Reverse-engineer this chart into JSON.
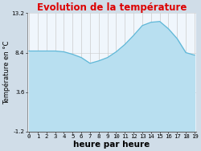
{
  "title": "Evolution de la température",
  "xlabel": "heure par heure",
  "ylabel": "Température en °C",
  "hours": [
    0,
    1,
    2,
    3,
    4,
    5,
    6,
    7,
    8,
    9,
    10,
    11,
    12,
    13,
    14,
    15,
    16,
    17,
    18,
    19
  ],
  "temps": [
    8.6,
    8.6,
    8.6,
    8.6,
    8.5,
    8.2,
    7.8,
    7.1,
    7.4,
    7.8,
    8.5,
    9.4,
    10.5,
    11.7,
    12.1,
    12.2,
    11.3,
    10.1,
    8.4,
    8.1
  ],
  "ylim": [
    -1.2,
    13.2
  ],
  "yticks": [
    -1.2,
    3.6,
    8.4,
    13.2
  ],
  "ytick_labels": [
    "-1.2",
    "3.6",
    "8.4",
    "13.2"
  ],
  "xticks": [
    0,
    1,
    2,
    3,
    4,
    5,
    6,
    7,
    8,
    9,
    10,
    11,
    12,
    13,
    14,
    15,
    16,
    17,
    18,
    19
  ],
  "fill_color": "#b8dff0",
  "fill_alpha": 1.0,
  "line_color": "#60b8d8",
  "line_width": 0.9,
  "bg_color": "#d0dde8",
  "plot_bg": "#f0f6fc",
  "grid_color": "#cccccc",
  "title_color": "#dd0000",
  "title_fontsize": 8.5,
  "label_fontsize": 6.0,
  "tick_fontsize": 5.2,
  "xlabel_fontsize": 7.5,
  "ylabel_rotation": 90
}
